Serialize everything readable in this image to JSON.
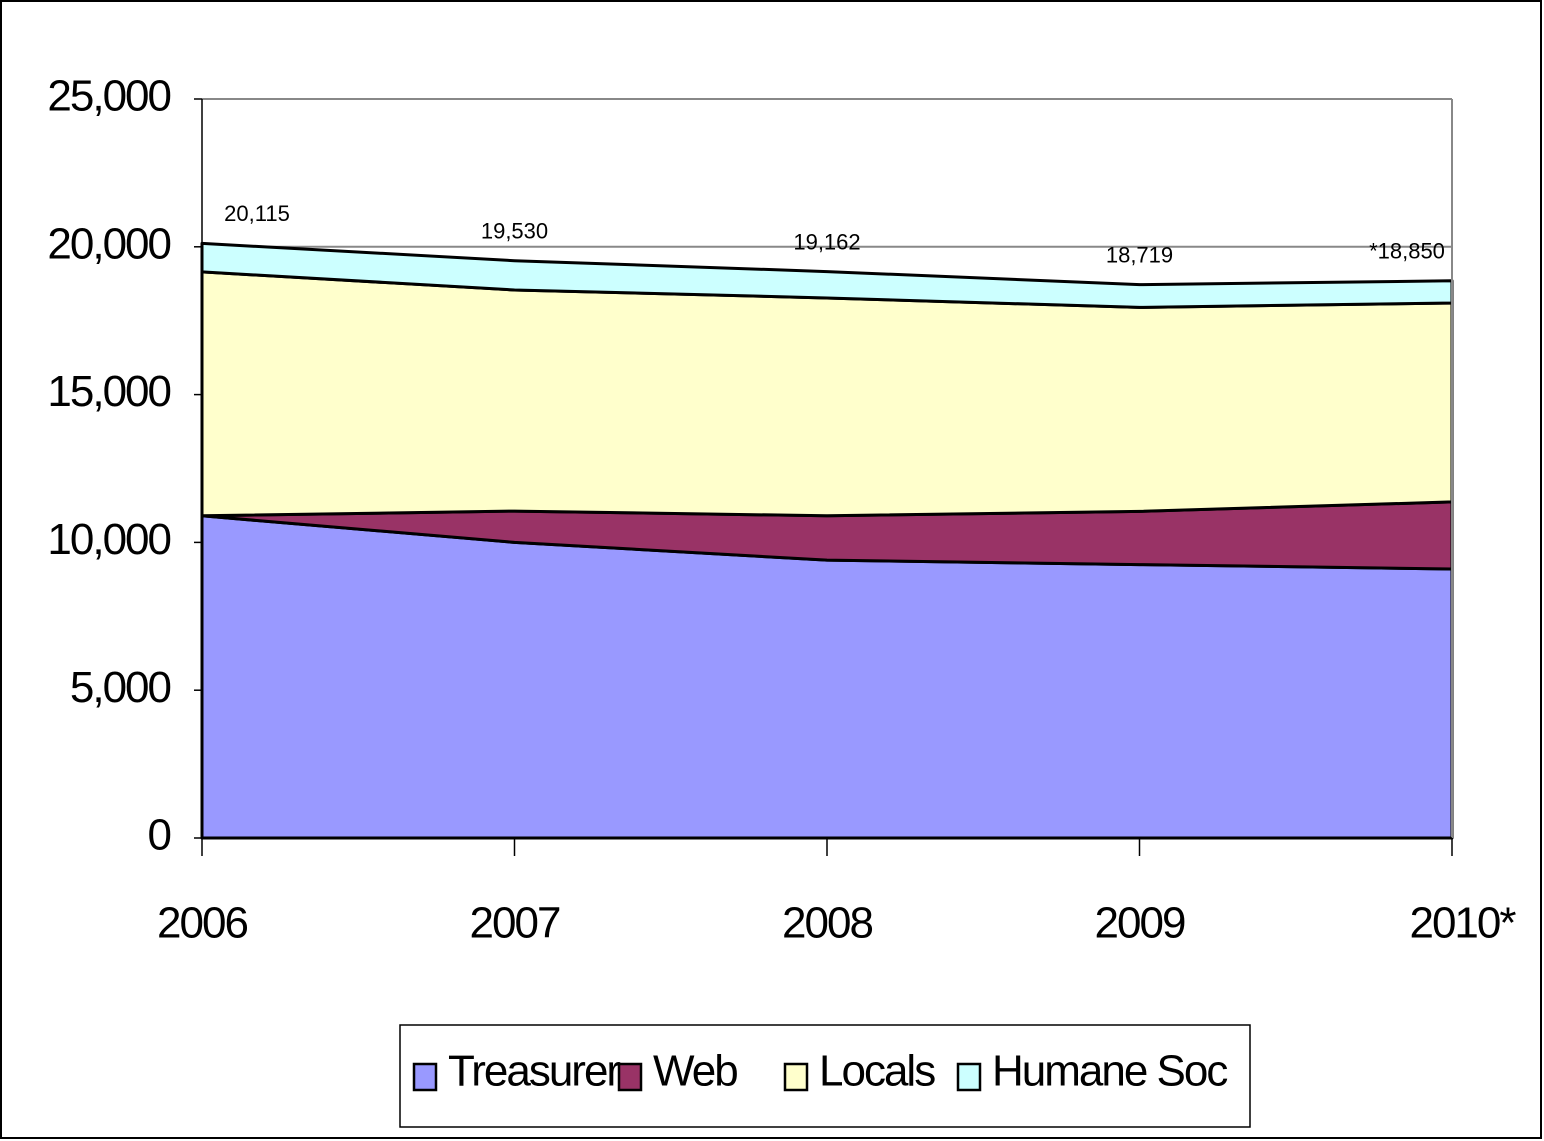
{
  "chart_data": {
    "type": "stacked_area",
    "categories": [
      "2006",
      "2007",
      "2008",
      "2009",
      "2010*"
    ],
    "series": [
      {
        "name": "Treasurer",
        "color": "#9999ff",
        "values": [
          10900,
          10000,
          9400,
          9250,
          9100
        ]
      },
      {
        "name": "Web",
        "color": "#993366",
        "values": [
          0,
          1060,
          1500,
          1800,
          2270
        ]
      },
      {
        "name": "Locals",
        "color": "#ffffcc",
        "values": [
          8250,
          7480,
          7370,
          6900,
          6730
        ]
      },
      {
        "name": "Humane Soc",
        "color": "#ccffff",
        "values": [
          965,
          990,
          892,
          769,
          750
        ]
      }
    ],
    "total_labels": [
      {
        "value": 20115,
        "label": "20,115"
      },
      {
        "value": 19530,
        "label": "19,530"
      },
      {
        "value": 19162,
        "label": "19,162"
      },
      {
        "value": 18719,
        "label": "18,719"
      },
      {
        "value": 18850,
        "label": "*18,850"
      }
    ],
    "ylim": [
      0,
      25000
    ],
    "yticks": [
      0,
      {
        "value": 5000,
        "label": "5,000"
      },
      {
        "value": 10000,
        "label": "10,000"
      },
      {
        "value": 15000,
        "label": "15,000"
      },
      {
        "value": 20000,
        "label": "20,000"
      },
      {
        "value": 25000,
        "label": "25,000"
      }
    ],
    "grid": true,
    "legend": "bottom"
  }
}
